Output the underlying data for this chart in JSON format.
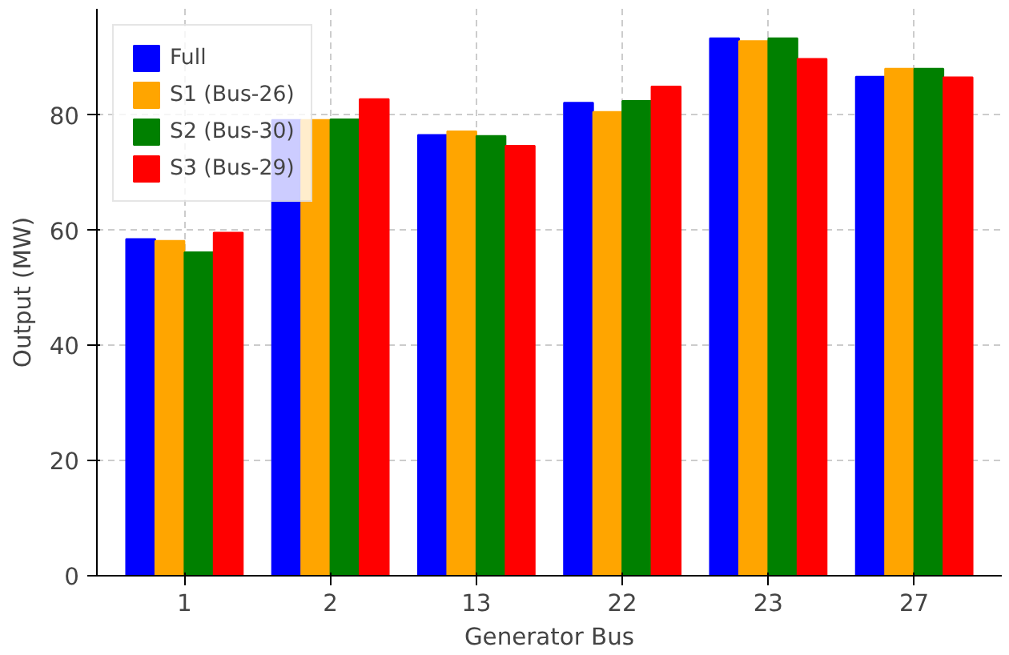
{
  "chart_data": {
    "type": "bar",
    "xlabel": "Generator Bus",
    "ylabel": "Output (MW)",
    "categories": [
      "1",
      "2",
      "13",
      "22",
      "23",
      "27"
    ],
    "series": [
      {
        "name": "Full",
        "color": "#0000ff",
        "values": [
          58.5,
          79.2,
          76.6,
          82.2,
          93.4,
          86.7
        ]
      },
      {
        "name": "S1 (Bus-26)",
        "color": "#ffa500",
        "values": [
          58.2,
          79.2,
          77.2,
          80.6,
          92.9,
          88.1
        ]
      },
      {
        "name": "S2 (Bus-30)",
        "color": "#008000",
        "values": [
          56.2,
          79.3,
          76.4,
          82.5,
          93.4,
          88.1
        ]
      },
      {
        "name": "S3 (Bus-29)",
        "color": "#ff0000",
        "values": [
          59.6,
          82.8,
          74.7,
          85.0,
          89.8,
          86.6
        ]
      }
    ],
    "ylim": [
      0,
      98.5
    ],
    "yticks": [
      0,
      20,
      40,
      60,
      80
    ],
    "grid": true,
    "legend": "top left"
  }
}
